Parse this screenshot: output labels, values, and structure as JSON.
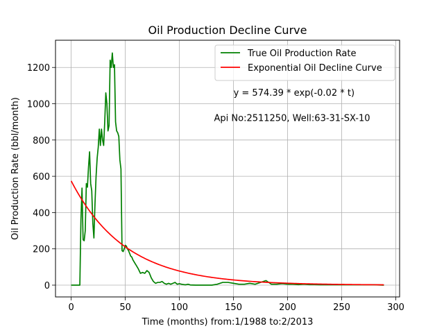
{
  "chart_data": {
    "type": "line",
    "title": "Oil Production Decline Curve",
    "xlabel": "Time (months) from:1/1988 to:2/2013",
    "ylabel": "Oil Production Rate (bbl/month)",
    "xlim": [
      -14.5,
      303.5
    ],
    "ylim": [
      -65,
      1350
    ],
    "grid": true,
    "legend_position": "top-right",
    "x_ticks": [
      {
        "value": 0,
        "label": "0"
      },
      {
        "value": 50,
        "label": "50"
      },
      {
        "value": 100,
        "label": "100"
      },
      {
        "value": 150,
        "label": "150"
      },
      {
        "value": 200,
        "label": "200"
      },
      {
        "value": 250,
        "label": "250"
      },
      {
        "value": 300,
        "label": "300"
      }
    ],
    "y_ticks": [
      {
        "value": 0,
        "label": "0"
      },
      {
        "value": 200,
        "label": "200"
      },
      {
        "value": 400,
        "label": "400"
      },
      {
        "value": 600,
        "label": "600"
      },
      {
        "value": 800,
        "label": "800"
      },
      {
        "value": 1000,
        "label": "1000"
      },
      {
        "value": 1200,
        "label": "1200"
      }
    ],
    "annotations": [
      {
        "text": "y = 574.39 * exp(-0.02 * t)",
        "x": 150,
        "y": 1045
      },
      {
        "text": "Api No:2511250, Well:63-31-SX-10",
        "x": 132,
        "y": 905
      }
    ],
    "series": [
      {
        "name": "True Oil Production Rate",
        "color": "#008000",
        "x": [
          0,
          1,
          2,
          3,
          4,
          5,
          6,
          7,
          8,
          9,
          10,
          11,
          12,
          13,
          14,
          15,
          16,
          17,
          18,
          19,
          20,
          21,
          22,
          23,
          24,
          25,
          26,
          27,
          28,
          29,
          30,
          31,
          32,
          33,
          34,
          35,
          36,
          37,
          38,
          39,
          40,
          41,
          42,
          43,
          44,
          45,
          46,
          47,
          48,
          49,
          50,
          51,
          52,
          53,
          54,
          55,
          56,
          57,
          58,
          59,
          60,
          62,
          64,
          66,
          68,
          70,
          72,
          74,
          76,
          78,
          80,
          82,
          84,
          86,
          88,
          90,
          92,
          94,
          96,
          98,
          100,
          102,
          104,
          106,
          108,
          110,
          115,
          120,
          125,
          130,
          135,
          140,
          145,
          150,
          155,
          160,
          165,
          170,
          175,
          180,
          185,
          190,
          195,
          200,
          205,
          210,
          215,
          220,
          225,
          230,
          240,
          250,
          260,
          270,
          280,
          289
        ],
        "values": [
          0,
          0,
          0,
          0,
          0,
          0,
          0,
          0,
          0,
          360,
          535,
          250,
          245,
          300,
          560,
          540,
          650,
          735,
          560,
          520,
          340,
          260,
          450,
          600,
          700,
          760,
          860,
          770,
          860,
          800,
          770,
          900,
          1060,
          1000,
          850,
          880,
          1240,
          1200,
          1280,
          1200,
          1215,
          900,
          850,
          840,
          820,
          690,
          640,
          190,
          185,
          200,
          220,
          215,
          200,
          190,
          175,
          160,
          155,
          140,
          130,
          120,
          110,
          90,
          65,
          70,
          65,
          80,
          70,
          40,
          20,
          10,
          15,
          15,
          20,
          10,
          5,
          10,
          5,
          10,
          15,
          5,
          8,
          5,
          3,
          2,
          5,
          1,
          0,
          0,
          0,
          0,
          5,
          15,
          15,
          10,
          5,
          5,
          10,
          5,
          15,
          25,
          5,
          5,
          8,
          5,
          5,
          3,
          5,
          3,
          3,
          2,
          2,
          2,
          2,
          2,
          2,
          0
        ]
      },
      {
        "name": "Exponential Oil Decline Curve",
        "color": "#ff0000",
        "a": 574.39,
        "b": -0.02,
        "x_range": [
          0,
          289
        ]
      }
    ]
  }
}
